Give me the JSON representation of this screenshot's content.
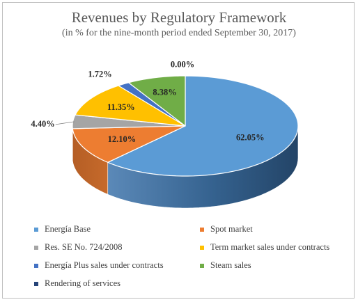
{
  "chart_data": {
    "type": "pie",
    "title": "Revenues by Regulatory Framework",
    "subtitle": "(in % for the nine-month period ended September 30, 2017)",
    "categories": [
      "Energía Base",
      "Spot market",
      "Res. SE No. 724/2008",
      "Term market sales under contracts",
      "Energía Plus sales under contracts",
      "Steam sales",
      "Rendering of services"
    ],
    "values": [
      62.05,
      12.1,
      4.4,
      11.35,
      1.72,
      8.38,
      0.0
    ],
    "data_labels": [
      "62.05%",
      "12.10%",
      "4.40%",
      "11.35%",
      "1.72%",
      "8.38%",
      "0.00%"
    ],
    "colors": [
      "#5b9bd5",
      "#ed7d31",
      "#a5a5a5",
      "#ffc000",
      "#4472c4",
      "#70ad47",
      "#264478"
    ],
    "legend_placement": "bottom",
    "style": "3d"
  }
}
